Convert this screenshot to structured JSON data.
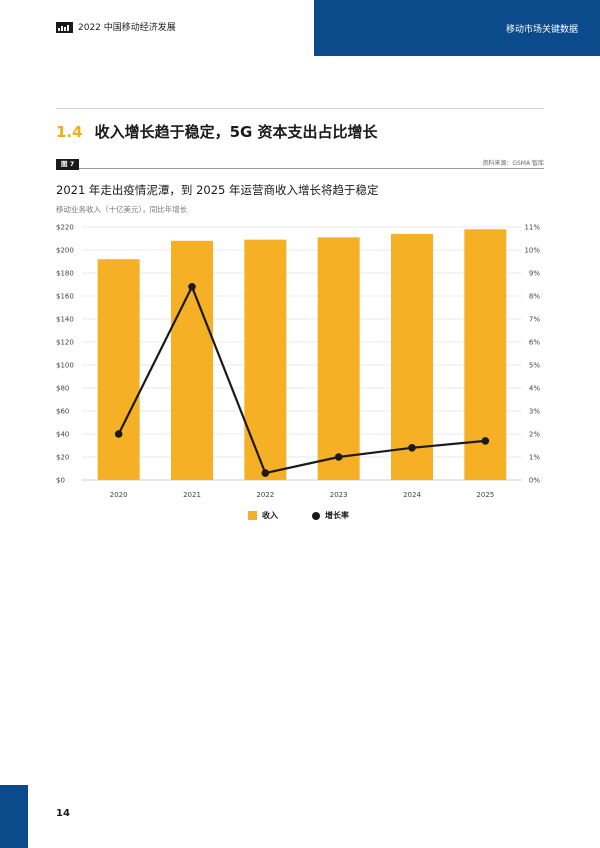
{
  "header": {
    "logo_icon": "gsma-logo-icon",
    "title": "2022 中国移动经济发展",
    "section_tab": "移动市场关键数据",
    "tab_color": "#0b4a8b"
  },
  "section": {
    "number": "1.4",
    "title": "收入增长趋于稳定，5G 资本支出占比增长",
    "number_color": "#f2ac1f"
  },
  "figure": {
    "tag": "图 7",
    "source": "资料来源：GSMA 智库"
  },
  "chart_data": {
    "type": "bar",
    "title": "2021 年走出疫情泥潭，到 2025 年运营商收入增长将趋于稳定",
    "subtitle": "移动业务收入（十亿美元），同比年增长",
    "categories": [
      "2020",
      "2021",
      "2022",
      "2023",
      "2024",
      "2025"
    ],
    "series": [
      {
        "name": "收入",
        "type": "bar",
        "axis": "left",
        "color": "#f5b025",
        "values": [
          192,
          208,
          209,
          211,
          214,
          218
        ]
      },
      {
        "name": "增长率",
        "type": "line",
        "axis": "right",
        "color": "#1a1a1a",
        "values": [
          2.0,
          8.4,
          0.3,
          1.0,
          1.4,
          1.7
        ]
      }
    ],
    "y_left": {
      "min": 0,
      "max": 220,
      "step": 20,
      "prefix": "$"
    },
    "y_right": {
      "min": 0,
      "max": 11,
      "step": 1,
      "suffix": "%"
    },
    "grid": true,
    "legend_position": "bottom-center"
  },
  "footer": {
    "page_number": "14"
  }
}
